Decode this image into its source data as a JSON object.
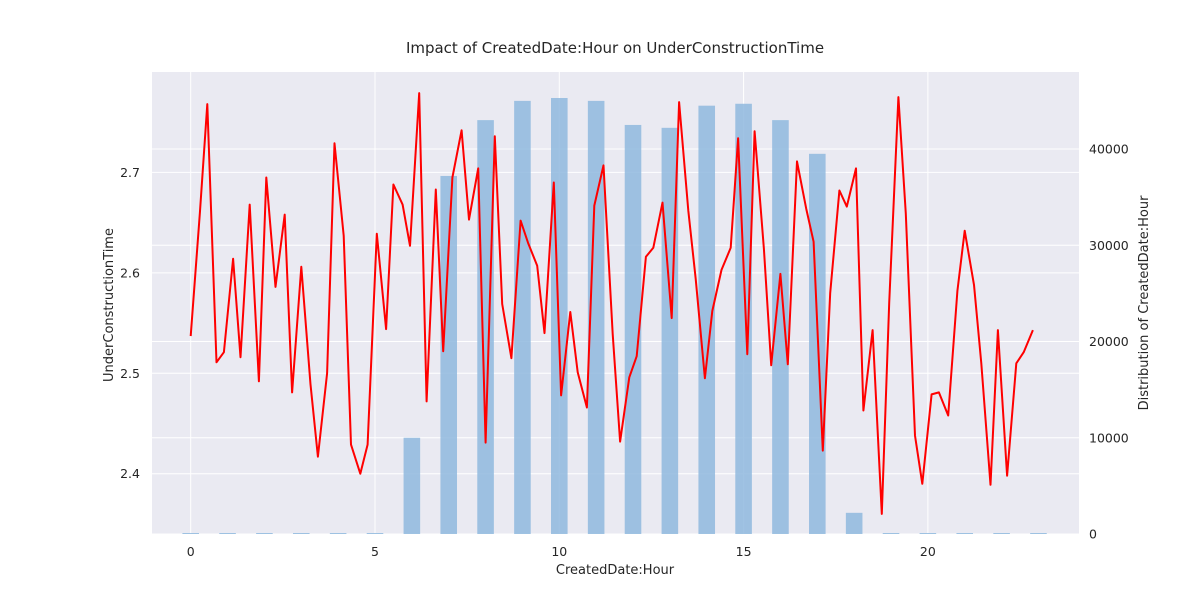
{
  "chart_data": {
    "type": "bar+line",
    "title": "Impact of CreatedDate:Hour on UnderConstructionTime",
    "xlabel": "CreatedDate:Hour",
    "ylabel": "UnderConstructionTime",
    "y2label": "Distribution of CreatedDate:Hour",
    "xlim": [
      -1.05,
      24.1
    ],
    "ylim": [
      2.34,
      2.8
    ],
    "y2lim": [
      0,
      48000
    ],
    "xticks": [
      0,
      5,
      10,
      15,
      20
    ],
    "yticks": [
      2.4,
      2.5,
      2.6,
      2.7
    ],
    "y2ticks": [
      0,
      10000,
      20000,
      30000,
      40000
    ],
    "grid": true,
    "background": "#eaeaf2",
    "colors": {
      "line": "#ff0000",
      "bars": "#8fb8de"
    },
    "histogram": {
      "bin_width": 0.45,
      "x": [
        0,
        1,
        2,
        3,
        4,
        5,
        6,
        7,
        8,
        9,
        10,
        11,
        12,
        13,
        14,
        15,
        16,
        17,
        18,
        19,
        20,
        21,
        22,
        23
      ],
      "counts": [
        0,
        0,
        0,
        0,
        0,
        0,
        10000,
        37200,
        43000,
        45000,
        45300,
        45000,
        42500,
        42200,
        44500,
        44700,
        43000,
        39500,
        2200,
        0,
        0,
        0,
        0,
        0
      ]
    },
    "line": {
      "x": [
        0.0,
        0.25,
        0.45,
        0.7,
        0.9,
        1.15,
        1.35,
        1.6,
        1.85,
        2.05,
        2.3,
        2.55,
        2.75,
        3.0,
        3.25,
        3.45,
        3.7,
        3.9,
        4.15,
        4.35,
        4.6,
        4.8,
        5.05,
        5.3,
        5.5,
        5.75,
        5.95,
        6.2,
        6.4,
        6.65,
        6.85,
        7.1,
        7.35,
        7.55,
        7.8,
        8.0,
        8.25,
        8.45,
        8.7,
        8.95,
        9.15,
        9.4,
        9.6,
        9.85,
        10.05,
        10.3,
        10.5,
        10.75,
        10.95,
        11.2,
        11.45,
        11.65,
        11.9,
        12.1,
        12.35,
        12.55,
        12.8,
        13.05,
        13.25,
        13.5,
        13.7,
        13.95,
        14.15,
        14.4,
        14.65,
        14.85,
        15.1,
        15.3,
        15.55,
        15.75,
        16.0,
        16.2,
        16.45,
        16.7,
        16.9,
        17.15,
        17.35,
        17.6,
        17.8,
        18.05,
        18.25,
        18.5,
        18.75,
        18.95,
        19.2,
        19.4,
        19.65,
        19.85,
        20.1,
        20.3,
        20.55,
        20.8,
        21.0,
        21.25,
        21.45,
        21.7,
        21.9,
        22.15,
        22.4,
        22.6,
        22.85
      ],
      "y": [
        2.537,
        2.66,
        2.768,
        2.511,
        2.521,
        2.614,
        2.516,
        2.668,
        2.492,
        2.695,
        2.586,
        2.658,
        2.481,
        2.606,
        2.489,
        2.417,
        2.5,
        2.729,
        2.637,
        2.429,
        2.4,
        2.429,
        2.639,
        2.544,
        2.688,
        2.668,
        2.627,
        2.779,
        2.472,
        2.683,
        2.522,
        2.695,
        2.742,
        2.653,
        2.704,
        2.431,
        2.736,
        2.569,
        2.515,
        2.652,
        2.63,
        2.607,
        2.54,
        2.69,
        2.478,
        2.561,
        2.501,
        2.466,
        2.667,
        2.707,
        2.539,
        2.432,
        2.496,
        2.517,
        2.616,
        2.625,
        2.67,
        2.555,
        2.77,
        2.662,
        2.594,
        2.495,
        2.562,
        2.603,
        2.625,
        2.734,
        2.519,
        2.741,
        2.624,
        2.508,
        2.599,
        2.509,
        2.711,
        2.664,
        2.631,
        2.423,
        2.58,
        2.682,
        2.666,
        2.704,
        2.463,
        2.543,
        2.36,
        2.57,
        2.775,
        2.659,
        2.438,
        2.39,
        2.479,
        2.481,
        2.458,
        2.582,
        2.642,
        2.588,
        2.51,
        2.389,
        2.543,
        2.398,
        2.51,
        2.521,
        2.543
      ]
    }
  }
}
